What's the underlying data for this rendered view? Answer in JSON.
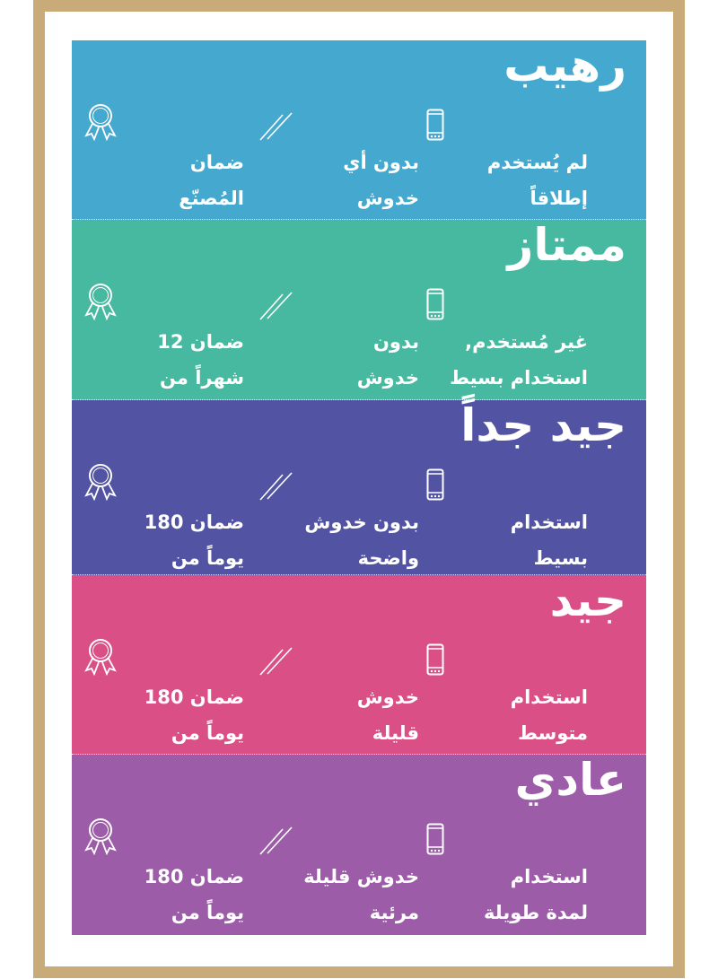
{
  "colors": {
    "frame": "#c8ab78",
    "bands": [
      "#45a9cf",
      "#47b9a0",
      "#5253a3",
      "#d94f86",
      "#9d5ca8"
    ]
  },
  "icons": {
    "usage": "smartphone-icon",
    "scratches": "scratch-lines-icon",
    "warranty": "award-ribbon-icon"
  },
  "grades": [
    {
      "title": "رهيب",
      "usage": [
        "لم يُستخدم",
        "إطلاقاً"
      ],
      "scratches": [
        "بدون أي",
        "خدوش"
      ],
      "warranty": [
        "ضمان",
        "المُصنّع"
      ]
    },
    {
      "title": "ممتاز",
      "usage": [
        "غير مُستخدم,",
        "استخدام بسيط"
      ],
      "scratches": [
        "بدون",
        "خدوش"
      ],
      "warranty": [
        "ضمان 12",
        "شهراً من"
      ]
    },
    {
      "title": "جيد جداً",
      "usage": [
        "استخدام",
        "بسيط"
      ],
      "scratches": [
        "بدون خدوش",
        "واضحة"
      ],
      "warranty": [
        "ضمان 180",
        "يوماً من"
      ]
    },
    {
      "title": "جيد",
      "usage": [
        "استخدام",
        "متوسط"
      ],
      "scratches": [
        "خدوش",
        "قليلة"
      ],
      "warranty": [
        "ضمان 180",
        "يوماً من"
      ]
    },
    {
      "title": "عادي",
      "usage": [
        "استخدام",
        "لمدة طويلة"
      ],
      "scratches": [
        "خدوش قليلة",
        "مرئية"
      ],
      "warranty": [
        "ضمان 180",
        "يوماً من"
      ]
    }
  ]
}
